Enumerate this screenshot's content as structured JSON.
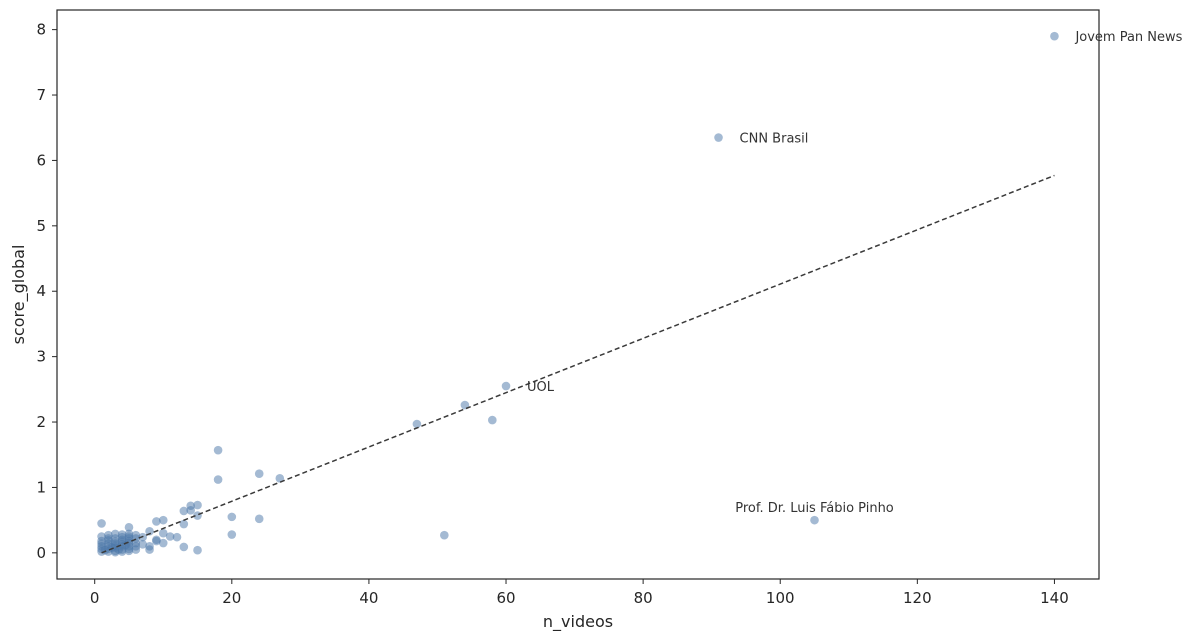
{
  "chart_data": {
    "type": "scatter",
    "title": "",
    "xlabel": "n_videos",
    "ylabel": "score_global",
    "xlim": [
      -5.5,
      146.5
    ],
    "ylim": [
      -0.4,
      8.3
    ],
    "xticks": [
      0,
      20,
      40,
      60,
      80,
      100,
      120,
      140
    ],
    "yticks": [
      0,
      1,
      2,
      3,
      4,
      5,
      6,
      7,
      8
    ],
    "grid": false,
    "legend": "none",
    "colors": {
      "point": "#4a76a8",
      "trend": "#3a3a3a",
      "axis": "#262626",
      "text": "#262626"
    },
    "trend_line": {
      "style": "dashed",
      "x": [
        1,
        140
      ],
      "y": [
        0.0,
        5.77
      ]
    },
    "annotations": [
      {
        "label": "Jovem Pan News",
        "x": 140,
        "y": 7.9
      },
      {
        "label": "CNN Brasil",
        "x": 91,
        "y": 6.35
      },
      {
        "label": "UOL",
        "x": 60,
        "y": 2.55
      },
      {
        "label": "Prof. Dr. Luis Fábio Pinho",
        "x": 105,
        "y": 0.5
      }
    ],
    "points": [
      [
        140,
        7.9
      ],
      [
        91,
        6.35
      ],
      [
        60,
        2.55
      ],
      [
        105,
        0.5
      ],
      [
        54,
        2.26
      ],
      [
        58,
        2.03
      ],
      [
        47,
        1.97
      ],
      [
        51,
        0.27
      ],
      [
        18,
        1.57
      ],
      [
        18,
        1.12
      ],
      [
        24,
        1.21
      ],
      [
        27,
        1.14
      ],
      [
        24,
        0.52
      ],
      [
        20,
        0.55
      ],
      [
        20,
        0.28
      ],
      [
        15,
        0.73
      ],
      [
        14,
        0.72
      ],
      [
        15,
        0.57
      ],
      [
        13,
        0.64
      ],
      [
        13,
        0.44
      ],
      [
        14,
        0.65
      ],
      [
        12,
        0.24
      ],
      [
        11,
        0.25
      ],
      [
        10,
        0.5
      ],
      [
        9,
        0.48
      ],
      [
        10,
        0.3
      ],
      [
        10,
        0.15
      ],
      [
        9,
        0.2
      ],
      [
        9,
        0.18
      ],
      [
        8,
        0.33
      ],
      [
        8,
        0.1
      ],
      [
        8,
        0.05
      ],
      [
        13,
        0.09
      ],
      [
        15,
        0.04
      ],
      [
        1,
        0.45
      ],
      [
        1,
        0.25
      ],
      [
        1,
        0.1
      ],
      [
        1,
        0.02
      ],
      [
        1,
        0.06
      ],
      [
        1,
        0.14
      ],
      [
        2,
        0.27
      ],
      [
        2,
        0.14
      ],
      [
        2,
        0.06
      ],
      [
        2,
        0.02
      ],
      [
        2,
        0.19
      ],
      [
        2,
        0.1
      ],
      [
        3,
        0.29
      ],
      [
        3,
        0.22
      ],
      [
        3,
        0.14
      ],
      [
        3,
        0.08
      ],
      [
        3,
        0.03
      ],
      [
        3,
        0.17
      ],
      [
        3,
        0.11
      ],
      [
        4,
        0.24
      ],
      [
        4,
        0.17
      ],
      [
        4,
        0.1
      ],
      [
        4,
        0.05
      ],
      [
        4,
        0.02
      ],
      [
        4,
        0.28
      ],
      [
        4,
        0.13
      ],
      [
        5,
        0.39
      ],
      [
        5,
        0.29
      ],
      [
        5,
        0.22
      ],
      [
        5,
        0.15
      ],
      [
        5,
        0.1
      ],
      [
        5,
        0.06
      ],
      [
        5,
        0.03
      ],
      [
        5,
        0.18
      ],
      [
        6,
        0.22
      ],
      [
        6,
        0.1
      ],
      [
        6,
        0.05
      ],
      [
        6,
        0.15
      ],
      [
        7,
        0.24
      ],
      [
        7,
        0.13
      ],
      [
        1.5,
        0.04
      ],
      [
        2.5,
        0.08
      ],
      [
        3.5,
        0.05
      ],
      [
        4.5,
        0.12
      ],
      [
        2,
        0.22
      ],
      [
        3,
        0.01
      ],
      [
        4,
        0.2
      ],
      [
        5,
        0.25
      ],
      [
        1,
        0.18
      ],
      [
        6,
        0.27
      ]
    ]
  }
}
